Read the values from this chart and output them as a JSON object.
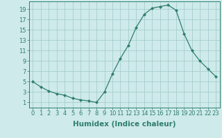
{
  "x": [
    0,
    1,
    2,
    3,
    4,
    5,
    6,
    7,
    8,
    9,
    10,
    11,
    12,
    13,
    14,
    15,
    16,
    17,
    18,
    19,
    20,
    21,
    22,
    23
  ],
  "y": [
    5,
    4,
    3.2,
    2.7,
    2.4,
    1.8,
    1.5,
    1.3,
    1.0,
    3.0,
    6.5,
    9.5,
    12.0,
    15.5,
    18.0,
    19.2,
    19.5,
    19.8,
    18.8,
    14.3,
    11.0,
    9.0,
    7.5,
    6.0
  ],
  "xlabel": "Humidex (Indice chaleur)",
  "ylabel": "",
  "xlim": [
    -0.5,
    23.5
  ],
  "ylim": [
    0.0,
    20.5
  ],
  "yticks": [
    1,
    3,
    5,
    7,
    9,
    11,
    13,
    15,
    17,
    19
  ],
  "xticks": [
    0,
    1,
    2,
    3,
    4,
    5,
    6,
    7,
    8,
    9,
    10,
    11,
    12,
    13,
    14,
    15,
    16,
    17,
    18,
    19,
    20,
    21,
    22,
    23
  ],
  "line_color": "#2e7d6e",
  "marker": "D",
  "marker_size": 2.0,
  "bg_color": "#ceeaea",
  "grid_color": "#a0c8c8",
  "xlabel_fontsize": 7.5,
  "tick_fontsize": 6.0,
  "fig_width": 3.2,
  "fig_height": 2.0,
  "dpi": 100
}
